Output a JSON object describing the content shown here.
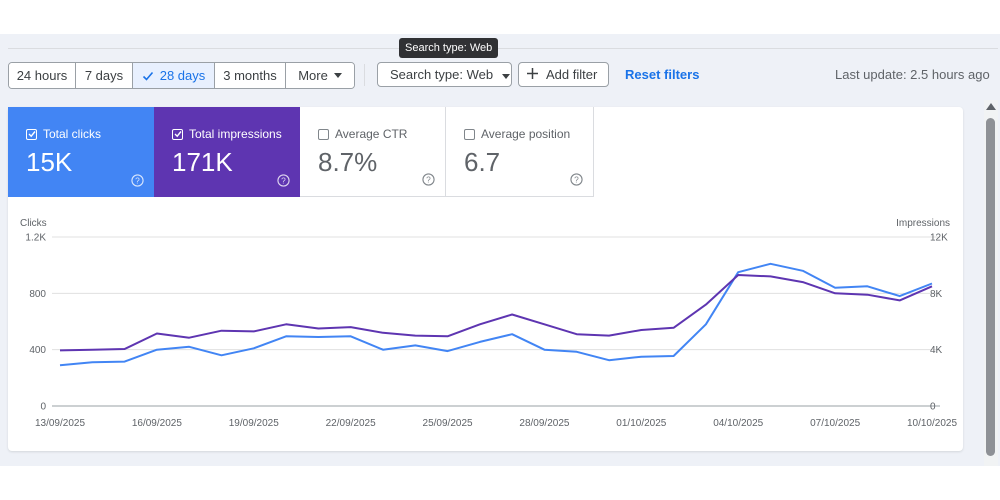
{
  "tooltip": "Search type: Web",
  "toolbar": {
    "ranges": [
      "24 hours",
      "7 days",
      "28 days",
      "3 months",
      "More"
    ],
    "active_range": "28 days",
    "search_type": "Search type: Web",
    "add_filter": "Add filter",
    "reset_filters": "Reset filters",
    "last_update": "Last update: 2.5 hours ago"
  },
  "metrics": {
    "clicks": {
      "label": "Total clicks",
      "value": "15K",
      "checked": true,
      "color": "#4285f4"
    },
    "impressions": {
      "label": "Total impressions",
      "value": "171K",
      "checked": true,
      "color": "#5e35b1"
    },
    "ctr": {
      "label": "Average CTR",
      "value": "8.7%",
      "checked": false
    },
    "position": {
      "label": "Average position",
      "value": "6.7",
      "checked": false
    }
  },
  "chart_data": {
    "type": "line",
    "left_axis": {
      "label": "Clicks",
      "ticks": [
        "0",
        "400",
        "800",
        "1.2K"
      ],
      "range": [
        0,
        1200
      ]
    },
    "right_axis": {
      "label": "Impressions",
      "ticks": [
        "0",
        "4K",
        "8K",
        "12K"
      ],
      "range": [
        0,
        12000
      ]
    },
    "x_tick_labels": [
      "13/09/2025",
      "16/09/2025",
      "19/09/2025",
      "22/09/2025",
      "25/09/2025",
      "28/09/2025",
      "01/10/2025",
      "04/10/2025",
      "07/10/2025",
      "10/10/2025"
    ],
    "x": [
      "13/09/2025",
      "14/09/2025",
      "15/09/2025",
      "16/09/2025",
      "17/09/2025",
      "18/09/2025",
      "19/09/2025",
      "20/09/2025",
      "21/09/2025",
      "22/09/2025",
      "23/09/2025",
      "24/09/2025",
      "25/09/2025",
      "26/09/2025",
      "27/09/2025",
      "28/09/2025",
      "29/09/2025",
      "30/09/2025",
      "01/10/2025",
      "02/10/2025",
      "03/10/2025",
      "04/10/2025",
      "05/10/2025",
      "06/10/2025",
      "07/10/2025",
      "08/10/2025",
      "09/10/2025",
      "10/10/2025"
    ],
    "series": [
      {
        "name": "Clicks",
        "axis": "left",
        "color": "#4285f4",
        "values": [
          290,
          310,
          315,
          400,
          420,
          360,
          410,
          495,
          490,
          495,
          400,
          430,
          390,
          455,
          510,
          400,
          385,
          325,
          350,
          355,
          580,
          950,
          1010,
          960,
          840,
          850,
          780,
          870
        ]
      },
      {
        "name": "Impressions",
        "axis": "right",
        "color": "#5e35b1",
        "values": [
          3950,
          4000,
          4050,
          5150,
          4850,
          5350,
          5300,
          5800,
          5500,
          5600,
          5200,
          5000,
          4950,
          5800,
          6500,
          5800,
          5100,
          5000,
          5400,
          5550,
          7200,
          9300,
          9200,
          8800,
          8000,
          7900,
          7500,
          8500
        ]
      }
    ],
    "grid": true
  }
}
